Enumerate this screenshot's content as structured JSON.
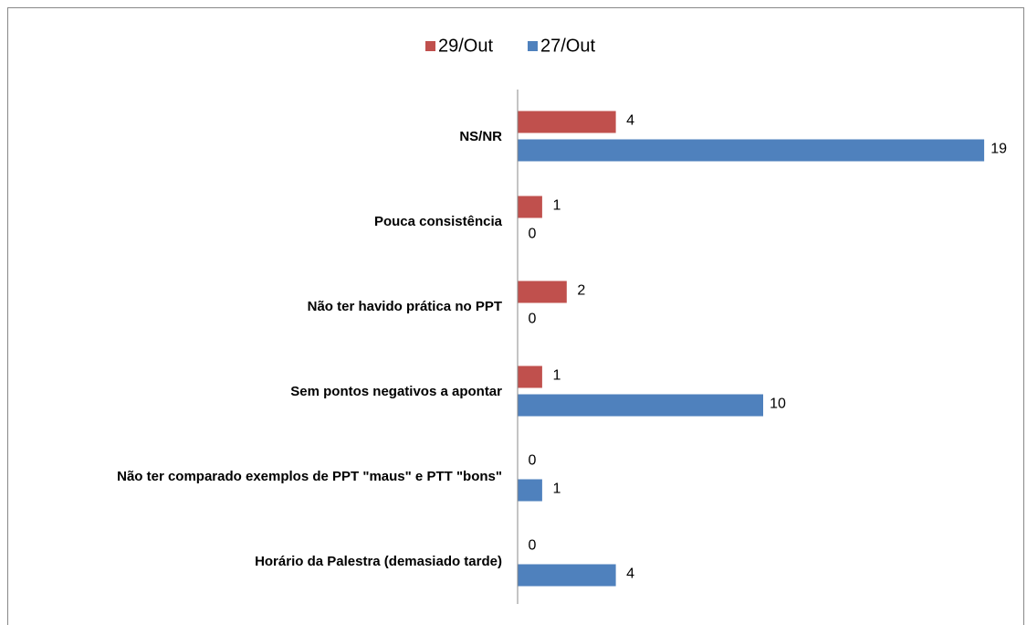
{
  "chart_data": {
    "type": "hbar",
    "categories": [
      "NS/NR",
      "Pouca consistência",
      "Não ter havido prática no PPT",
      "Sem pontos negativos a apontar",
      "Não ter comparado exemplos de PPT \"maus\" e PTT \"bons\"",
      "Horário da Palestra (demasiado tarde)"
    ],
    "series": [
      {
        "name": "29/Out",
        "color": "#c0504d",
        "values": [
          4,
          1,
          2,
          1,
          0,
          0
        ]
      },
      {
        "name": "27/Out",
        "color": "#4f81bd",
        "values": [
          19,
          0,
          0,
          10,
          1,
          4
        ]
      }
    ],
    "xlim": [
      0,
      20
    ],
    "legend": "top"
  }
}
